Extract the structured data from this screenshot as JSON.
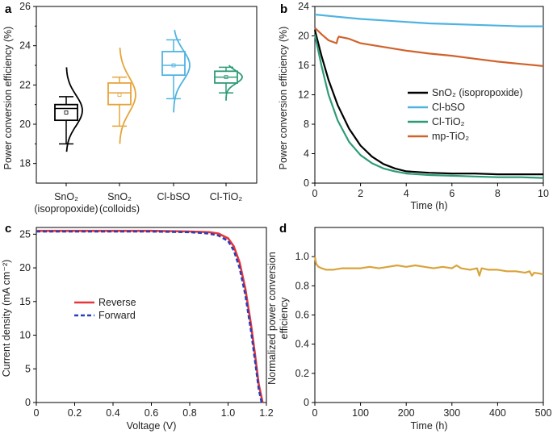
{
  "colors": {
    "black": "#000000",
    "blue": "#4fb3e0",
    "green": "#2e9b78",
    "orange": "#d0622b",
    "amber": "#e6a43a",
    "red": "#e8363a",
    "navy": "#2b40b5",
    "gold": "#d9a33a"
  },
  "chart_data": [
    {
      "panel": "a",
      "type": "box",
      "ylabel": "Power conversion efficiency (%)",
      "ylim": [
        17,
        26
      ],
      "yticks": [
        "18",
        "20",
        "22",
        "24",
        "26"
      ],
      "categories": [
        {
          "line1": "SnO₂",
          "line2": "(isopropoxide)"
        },
        {
          "line1": "SnO₂",
          "line2": "(colloids)"
        },
        {
          "line1": "Cl-bSO",
          "line2": ""
        },
        {
          "line1": "Cl-TiO₂",
          "line2": ""
        }
      ],
      "boxes": [
        {
          "name": "SnO2 (isopropoxide)",
          "color": "black",
          "whisker_low": 19.0,
          "q1": 20.2,
          "median": 20.8,
          "mean": 20.6,
          "q3": 21.0,
          "whisker_high": 21.4,
          "dist_min": 18.6,
          "dist_max": 22.9,
          "dist_peak": 20.7
        },
        {
          "name": "SnO2 (colloids)",
          "color": "amber",
          "whisker_low": 19.9,
          "q1": 21.0,
          "median": 21.6,
          "mean": 21.5,
          "q3": 22.1,
          "whisker_high": 22.4,
          "dist_min": 19.0,
          "dist_max": 23.9,
          "dist_peak": 21.5
        },
        {
          "name": "Cl-bSO",
          "color": "blue",
          "whisker_low": 21.3,
          "q1": 22.5,
          "median": 23.0,
          "mean": 23.0,
          "q3": 23.7,
          "whisker_high": 24.3,
          "dist_min": 20.6,
          "dist_max": 24.8,
          "dist_peak": 23.0
        },
        {
          "name": "Cl-TiO2",
          "color": "green",
          "whisker_low": 21.6,
          "q1": 22.1,
          "median": 22.4,
          "mean": 22.4,
          "q3": 22.7,
          "whisker_high": 22.9,
          "dist_min": 21.2,
          "dist_max": 23.0,
          "dist_peak": 22.4
        }
      ]
    },
    {
      "panel": "b",
      "type": "line",
      "xlabel": "Time (h)",
      "ylabel": "Power conversion efficiency (%)",
      "xlim": [
        0,
        10
      ],
      "ylim": [
        0,
        24
      ],
      "xticks": [
        "0",
        "2",
        "4",
        "6",
        "8",
        "10"
      ],
      "yticks": [
        "0",
        "4",
        "8",
        "12",
        "16",
        "20",
        "24"
      ],
      "legend_position": "center-right",
      "series": [
        {
          "name": "SnO₂ (isopropoxide)",
          "color": "black",
          "x": [
            0,
            0.3,
            0.6,
            1,
            1.5,
            2,
            2.5,
            3,
            3.5,
            4,
            5,
            6,
            7,
            8,
            9,
            10
          ],
          "y": [
            20.8,
            17.2,
            14.0,
            10.6,
            7.4,
            5.1,
            3.6,
            2.6,
            2.0,
            1.6,
            1.4,
            1.3,
            1.3,
            1.2,
            1.2,
            1.2
          ]
        },
        {
          "name": "Cl-bSO",
          "color": "blue",
          "x": [
            0,
            1,
            2,
            3,
            4,
            5,
            6,
            7,
            8,
            9,
            10
          ],
          "y": [
            22.9,
            22.6,
            22.3,
            22.1,
            21.9,
            21.7,
            21.6,
            21.5,
            21.4,
            21.3,
            21.3
          ]
        },
        {
          "name": "Cl-TiO₂",
          "color": "green",
          "x": [
            0,
            0.3,
            0.6,
            1,
            1.5,
            2,
            2.5,
            3,
            3.5,
            4,
            5,
            6,
            7,
            8,
            9,
            10
          ],
          "y": [
            20.2,
            15.8,
            12.0,
            8.5,
            5.6,
            3.8,
            2.7,
            2.0,
            1.6,
            1.3,
            1.1,
            1.0,
            0.9,
            0.8,
            0.8,
            0.7
          ]
        },
        {
          "name": "mp-TiO₂",
          "color": "orange",
          "x": [
            0,
            0.3,
            0.6,
            0.95,
            1.0,
            1.05,
            1.5,
            2,
            3,
            4,
            5,
            6,
            7,
            8,
            9,
            10
          ],
          "y": [
            21.1,
            20.2,
            19.4,
            19.0,
            19.6,
            19.9,
            19.6,
            19.0,
            18.5,
            18.0,
            17.6,
            17.3,
            16.9,
            16.5,
            16.2,
            15.9
          ]
        }
      ]
    },
    {
      "panel": "c",
      "type": "line",
      "xlabel": "Voltage (V)",
      "ylabel": "Current density (mA cm⁻²)",
      "xlim": [
        0,
        1.2
      ],
      "ylim": [
        0,
        26
      ],
      "xticks": [
        "0",
        "0.2",
        "0.4",
        "0.6",
        "0.8",
        "1.0",
        "1.2"
      ],
      "yticks": [
        "0",
        "5",
        "10",
        "15",
        "20",
        "25"
      ],
      "legend_position": "center-left",
      "series": [
        {
          "name": "Reverse",
          "color": "red",
          "style": "solid",
          "x": [
            0,
            0.2,
            0.4,
            0.6,
            0.8,
            0.9,
            0.95,
            1.0,
            1.03,
            1.06,
            1.09,
            1.12,
            1.14,
            1.16,
            1.18
          ],
          "y": [
            25.5,
            25.5,
            25.5,
            25.5,
            25.4,
            25.3,
            25.1,
            24.4,
            23.2,
            20.8,
            16.9,
            11.5,
            7.2,
            2.7,
            0
          ]
        },
        {
          "name": "Forward",
          "color": "navy",
          "style": "dashed",
          "x": [
            0,
            0.2,
            0.4,
            0.6,
            0.8,
            0.9,
            0.95,
            1.0,
            1.03,
            1.06,
            1.09,
            1.12,
            1.14,
            1.16,
            1.175
          ],
          "y": [
            25.4,
            25.4,
            25.4,
            25.4,
            25.3,
            25.1,
            24.8,
            24.0,
            22.6,
            20.0,
            16.0,
            10.6,
            6.3,
            2.0,
            0
          ]
        }
      ]
    },
    {
      "panel": "d",
      "type": "line",
      "xlabel": "Time (h)",
      "ylabel_line1": "Normalized power conversion",
      "ylabel_line2": "efficiency",
      "xlim": [
        0,
        500
      ],
      "ylim": [
        0,
        1.2
      ],
      "xticks": [
        "0",
        "100",
        "200",
        "300",
        "400",
        "500"
      ],
      "yticks": [
        "0",
        "0.2",
        "0.4",
        "0.6",
        "0.8",
        "1.0"
      ],
      "series": [
        {
          "name": "Normalized PCE",
          "color": "gold",
          "x": [
            0,
            3,
            8,
            15,
            25,
            40,
            60,
            80,
            100,
            120,
            140,
            160,
            180,
            200,
            220,
            240,
            260,
            280,
            300,
            310,
            320,
            340,
            355,
            360,
            365,
            380,
            400,
            420,
            440,
            460,
            470,
            475,
            480,
            500
          ],
          "y": [
            1.0,
            0.95,
            0.93,
            0.92,
            0.91,
            0.91,
            0.92,
            0.92,
            0.92,
            0.93,
            0.92,
            0.93,
            0.94,
            0.93,
            0.94,
            0.93,
            0.92,
            0.93,
            0.92,
            0.94,
            0.92,
            0.91,
            0.92,
            0.87,
            0.92,
            0.91,
            0.91,
            0.9,
            0.9,
            0.89,
            0.9,
            0.87,
            0.89,
            0.88
          ]
        }
      ]
    }
  ]
}
